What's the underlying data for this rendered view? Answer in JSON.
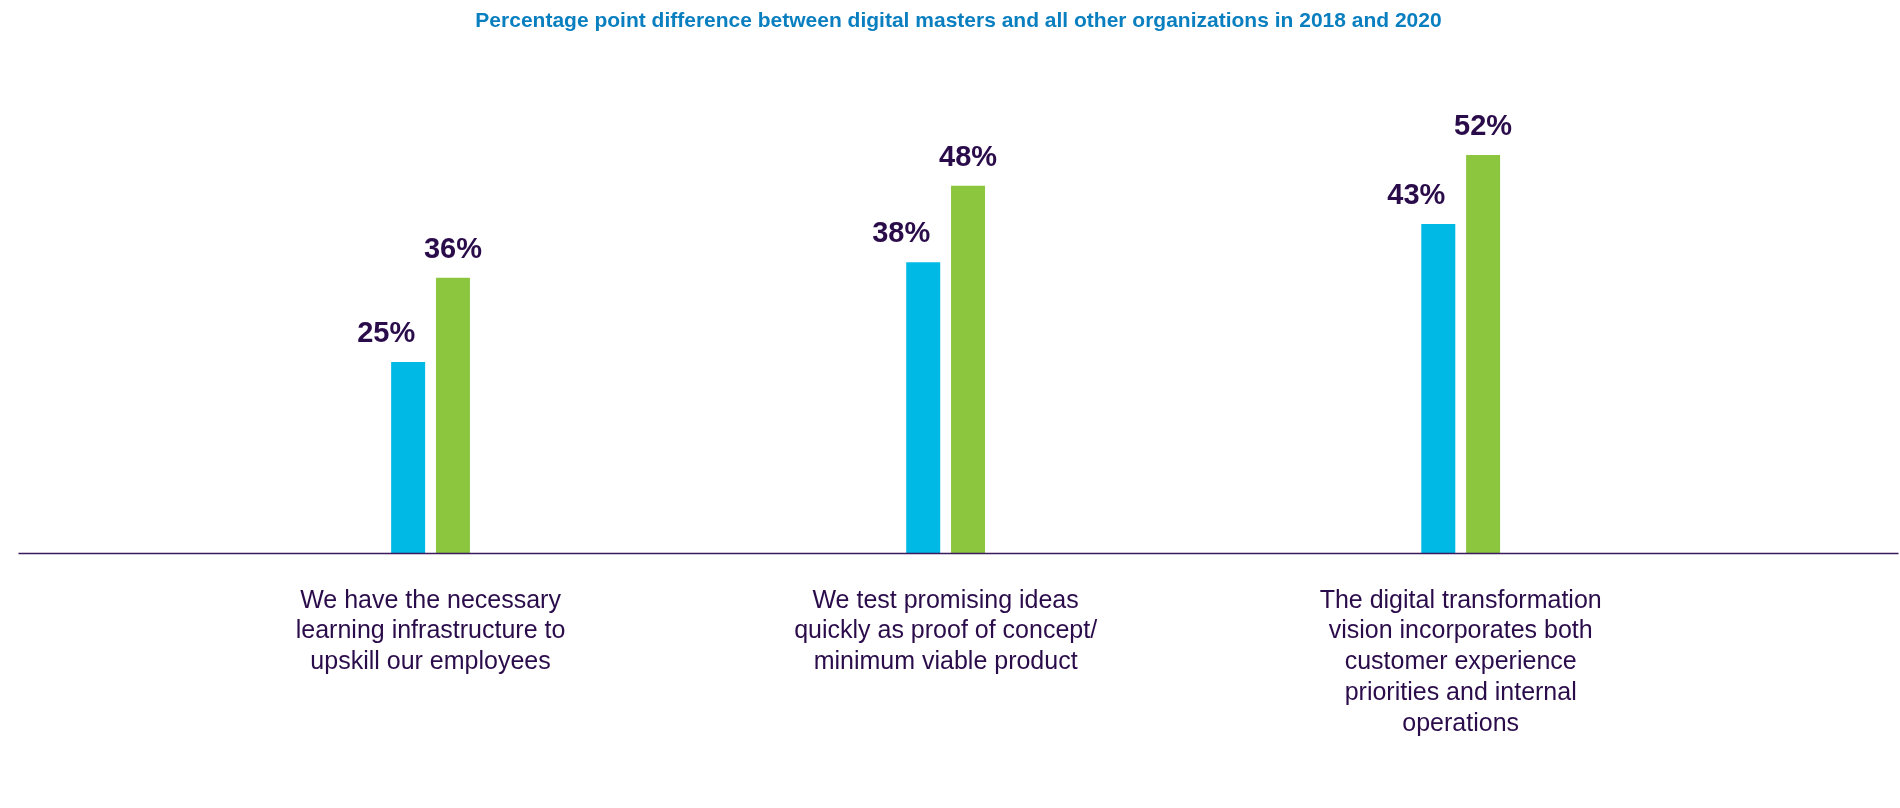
{
  "chart_data": {
    "type": "bar",
    "title": "Percentage point difference between digital masters and all other organizations in 2018 and 2020",
    "categories": [
      "We have the necessary learning infrastructure to upskill our employees",
      "We test promising ideas quickly as proof of concept/ minimum viable product",
      "The digital transformation vision incorporates both customer experience priorities and internal operations"
    ],
    "series": [
      {
        "color": "#00b9e5",
        "values": [
          25,
          38,
          43
        ],
        "value_labels": [
          "25%",
          "38%",
          "43%"
        ]
      },
      {
        "color": "#8cc63f",
        "values": [
          36,
          48,
          52
        ],
        "value_labels": [
          "36%",
          "48%",
          "52%"
        ]
      }
    ],
    "grid": false,
    "tick_labels": "x"
  }
}
